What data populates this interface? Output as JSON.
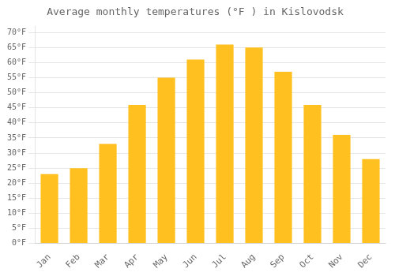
{
  "chart_data": {
    "type": "bar",
    "title": "Average monthly temperatures (°F ) in Kislovodsk",
    "categories": [
      "Jan",
      "Feb",
      "Mar",
      "Apr",
      "May",
      "Jun",
      "Jul",
      "Aug",
      "Sep",
      "Oct",
      "Nov",
      "Dec"
    ],
    "values": [
      23,
      25,
      33,
      46,
      55,
      61,
      66,
      65,
      57,
      46,
      36,
      28
    ],
    "color": "#FFC020",
    "ylim": [
      0,
      72
    ],
    "yticks": [
      {
        "value": 0,
        "label": "0°F"
      },
      {
        "value": 5,
        "label": "5°F"
      },
      {
        "value": 10,
        "label": "10°F"
      },
      {
        "value": 15,
        "label": "15°F"
      },
      {
        "value": 20,
        "label": "20°F"
      },
      {
        "value": 25,
        "label": "25°F"
      },
      {
        "value": 30,
        "label": "30°F"
      },
      {
        "value": 35,
        "label": "35°F"
      },
      {
        "value": 40,
        "label": "40°F"
      },
      {
        "value": 45,
        "label": "45°F"
      },
      {
        "value": 50,
        "label": "50°F"
      },
      {
        "value": 55,
        "label": "55°F"
      },
      {
        "value": 60,
        "label": "60°F"
      },
      {
        "value": 65,
        "label": "65°F"
      },
      {
        "value": 70,
        "label": "70°F"
      }
    ],
    "grid": true
  }
}
